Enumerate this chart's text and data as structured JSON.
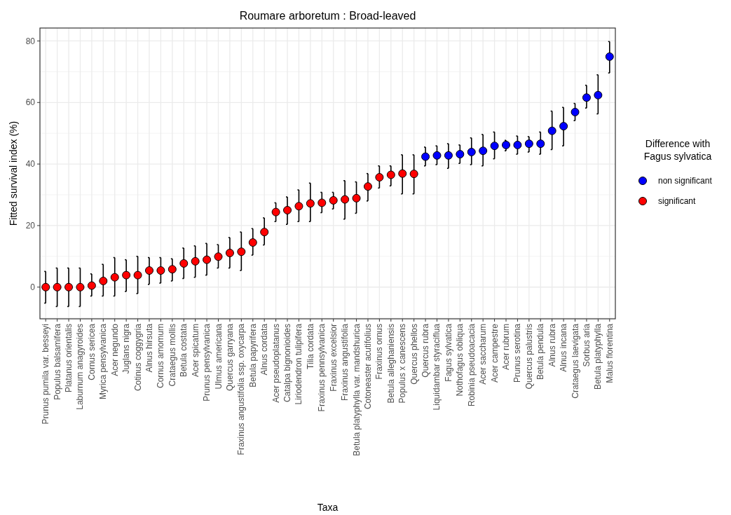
{
  "chart_data": {
    "type": "scatter",
    "title": "Roumare arboretum : Broad-leaved",
    "xlabel": "Taxa",
    "ylabel": "Fitted survival index (%)",
    "legend_title": "Difference with\nFagus sylvatica",
    "legend": "right",
    "grid": true,
    "marker": "circle",
    "ylim": [
      -10.3,
      84.2
    ],
    "yticks": [
      0,
      20,
      40,
      60,
      80
    ],
    "categories": [
      "Prunus pumila var. besseyi",
      "Populus balsamifera",
      "Platanus orientalis",
      "Laburnum anagyroides",
      "Cornus sericea",
      "Myrica pensylvanica",
      "Acer negundo",
      "Juglans nigra",
      "Cotinus coggygria",
      "Alnus hirsuta",
      "Cornus amomum",
      "Crataegus mollis",
      "Betula costata",
      "Acer spicatum",
      "Prunus pensylvanica",
      "Ulmus americana",
      "Quercus garryana",
      "Fraxinus angustifolia ssp. oxycarpa",
      "Betula papyrifera",
      "Alnus cordata",
      "Acer pseudoplatanus",
      "Catalpa bignonioides",
      "Liriodendron tulipifera",
      "Tilia cordata",
      "Fraxinus pennsylvanica",
      "Fraxinus excelsior",
      "Fraxinus angustifolia",
      "Betula platyphylla var. mandshurica",
      "Cotoneaster acutifolius",
      "Fraxinus ornus",
      "Betula alleghaniensis",
      "Populus x canescens",
      "Quercus phellos",
      "Quercus rubra",
      "Liquidambar styraciflua",
      "Fagus sylvatica",
      "Nothofagus obliqua",
      "Robinia pseudoacacia",
      "Acer saccharum",
      "Acer campestre",
      "Acer rubrum",
      "Prunus serotina",
      "Quercus palustris",
      "Betula pendula",
      "Alnus rubra",
      "Alnus incana",
      "Crataegus laevigata",
      "Sorbus aria",
      "Betula platyphylla",
      "Malus florentina"
    ],
    "series": [
      {
        "name": "non significant",
        "color": "#0000ff",
        "values": [
          null,
          null,
          null,
          null,
          null,
          null,
          null,
          null,
          null,
          null,
          null,
          null,
          null,
          null,
          null,
          null,
          null,
          null,
          null,
          null,
          null,
          null,
          null,
          null,
          null,
          null,
          null,
          null,
          null,
          null,
          null,
          null,
          null,
          42.4,
          42.8,
          42.8,
          43.2,
          43.9,
          44.3,
          45.9,
          46.2,
          46.2,
          46.6,
          46.6,
          50.8,
          52.3,
          56.9,
          61.6,
          62.4,
          74.9
        ],
        "errors": [
          null,
          null,
          null,
          null,
          null,
          null,
          null,
          null,
          null,
          null,
          null,
          null,
          null,
          null,
          null,
          null,
          null,
          null,
          null,
          null,
          null,
          null,
          null,
          null,
          null,
          null,
          null,
          null,
          null,
          null,
          null,
          null,
          null,
          [
            39.4,
            45.5
          ],
          [
            39.8,
            45.9
          ],
          [
            38.6,
            46.6
          ],
          [
            40.2,
            46.2
          ],
          [
            39.8,
            48.5
          ],
          [
            39.4,
            49.6
          ],
          [
            41.7,
            50.4
          ],
          [
            44.3,
            47.7
          ],
          [
            43.2,
            49.1
          ],
          [
            43.9,
            48.9
          ],
          [
            43.2,
            50.4
          ],
          [
            44.7,
            57.2
          ],
          [
            45.9,
            58.4
          ],
          [
            54.1,
            59.7
          ],
          [
            58.2,
            65.6
          ],
          [
            56.3,
            69
          ],
          [
            69.6,
            79.8
          ]
        ]
      },
      {
        "name": "significant",
        "color": "#ff0000",
        "values": [
          0,
          0,
          0,
          0,
          0.5,
          2,
          3.2,
          3.9,
          3.9,
          5.4,
          5.4,
          5.8,
          7.7,
          8.4,
          8.9,
          9.9,
          11.1,
          11.5,
          14.5,
          17.9,
          24.4,
          25,
          26.3,
          27.2,
          27.4,
          28.2,
          28.5,
          28.9,
          32.7,
          35.7,
          36.5,
          36.9,
          36.8,
          null,
          null,
          null,
          null,
          null,
          null,
          null,
          null,
          null,
          null,
          null,
          null,
          null,
          null,
          null,
          null,
          null
        ],
        "errors": [
          [
            -5.2,
            5.1
          ],
          [
            -6.3,
            6.2
          ],
          [
            -6.3,
            6.2
          ],
          [
            -6.3,
            6.2
          ],
          [
            -2.9,
            4.3
          ],
          [
            -2.9,
            7.4
          ],
          [
            -2.9,
            9.6
          ],
          [
            -1.4,
            8.9
          ],
          [
            -2.1,
            10
          ],
          [
            0.9,
            9.6
          ],
          [
            1.3,
            9.6
          ],
          [
            2,
            9.2
          ],
          [
            2.8,
            12.7
          ],
          [
            3.2,
            13.4
          ],
          [
            3.9,
            14.2
          ],
          [
            6.2,
            13.8
          ],
          [
            6.2,
            16.1
          ],
          [
            5.4,
            17.9
          ],
          [
            10.4,
            19
          ],
          [
            13.7,
            22.5
          ],
          [
            21.3,
            27.4
          ],
          [
            20.4,
            29.3
          ],
          [
            21.3,
            31.6
          ],
          [
            21.3,
            33.8
          ],
          [
            24.2,
            30.8
          ],
          [
            25.4,
            30.8
          ],
          [
            22.1,
            34.6
          ],
          [
            24,
            34.2
          ],
          [
            28,
            36.9
          ],
          [
            32.2,
            39.4
          ],
          [
            32.9,
            39.4
          ],
          [
            30.3,
            43
          ],
          [
            30.3,
            43
          ],
          null,
          null,
          null,
          null,
          null,
          null,
          null,
          null,
          null,
          null,
          null,
          null,
          null,
          null,
          null,
          null,
          null
        ]
      }
    ]
  }
}
